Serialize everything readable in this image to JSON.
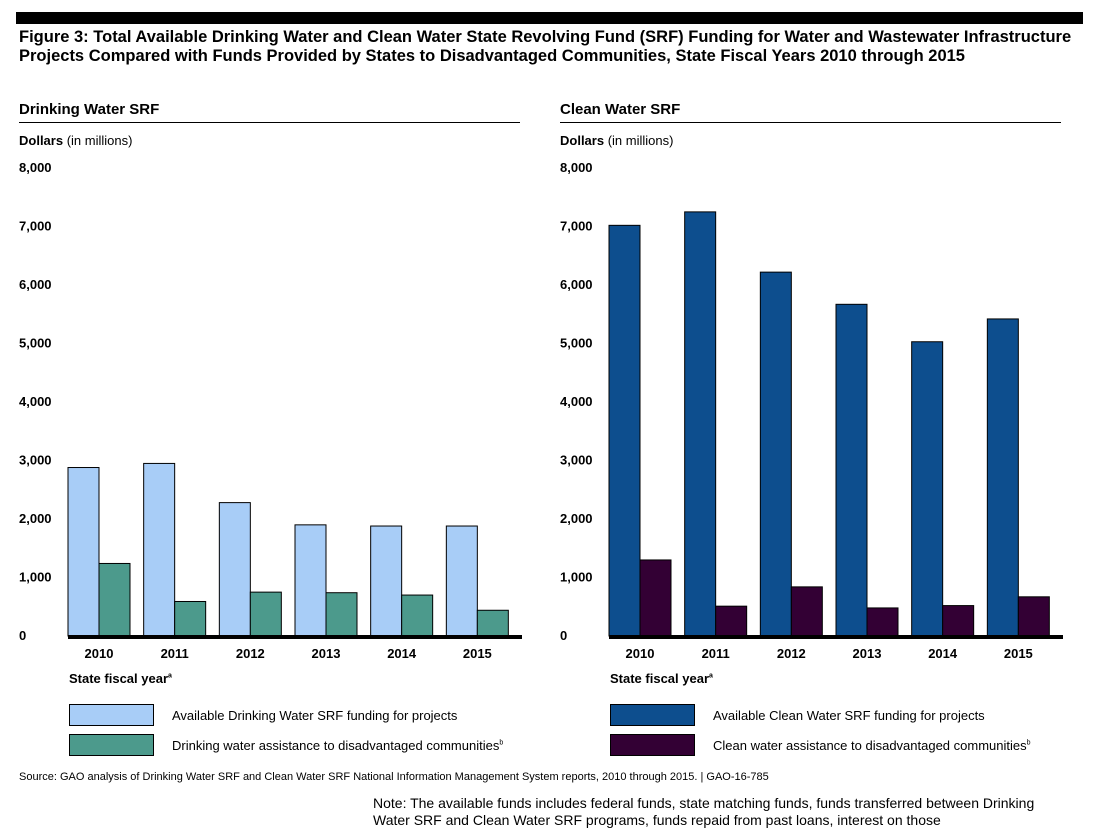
{
  "figure": {
    "title": "Figure 3: Total Available Drinking Water and Clean Water State Revolving Fund (SRF) Funding for Water and Wastewater Infrastructure Projects Compared with Funds Provided by States to Disadvantaged Communities, State Fiscal Years 2010 through 2015",
    "source": "Source: GAO analysis of Drinking Water SRF and Clean Water SRF National Information Management System reports, 2010 through 2015.  |  GAO-16-785",
    "note": "Note: The available funds includes federal funds, state matching funds, funds transferred between Drinking Water SRF and Clean Water SRF programs, funds repaid from past loans, interest on those"
  },
  "panels": {
    "dw": {
      "title": "Drinking Water SRF",
      "unit_bold": "Dollars",
      "unit_rest": " (in millions)",
      "xlabel": "State fiscal year",
      "xlabel_sup": "a",
      "legend": [
        {
          "label": "Available Drinking Water SRF funding for projects",
          "sup": ""
        },
        {
          "label": "Drinking water assistance to disadvantaged communities",
          "sup": "b"
        }
      ]
    },
    "cw": {
      "title": "Clean Water SRF",
      "unit_bold": "Dollars",
      "unit_rest": " (in millions)",
      "xlabel": "State fiscal year",
      "xlabel_sup": "a",
      "legend": [
        {
          "label": "Available Clean Water SRF funding for projects",
          "sup": ""
        },
        {
          "label": "Clean water assistance to disadvantaged communities",
          "sup": "b"
        }
      ]
    }
  },
  "chart_data": [
    {
      "type": "bar",
      "title": "Drinking Water SRF",
      "ylabel": "Dollars (in millions)",
      "xlabel": "State fiscal year",
      "ylim": [
        0,
        8000
      ],
      "yticks": [
        "0",
        "1,000",
        "2,000",
        "3,000",
        "4,000",
        "5,000",
        "6,000",
        "7,000",
        "8,000"
      ],
      "categories": [
        "2010",
        "2011",
        "2012",
        "2013",
        "2014",
        "2015"
      ],
      "series": [
        {
          "name": "Available Drinking Water SRF funding for projects",
          "color": "#a8cdf7",
          "values": [
            2880,
            2950,
            2280,
            1900,
            1880,
            1880
          ]
        },
        {
          "name": "Drinking water assistance to disadvantaged communities",
          "color": "#4c9a8c",
          "values": [
            1240,
            590,
            750,
            740,
            700,
            440
          ]
        }
      ],
      "grid": false,
      "legend_position": "bottom"
    },
    {
      "type": "bar",
      "title": "Clean Water SRF",
      "ylabel": "Dollars (in millions)",
      "xlabel": "State fiscal year",
      "ylim": [
        0,
        8000
      ],
      "yticks": [
        "0",
        "1,000",
        "2,000",
        "3,000",
        "4,000",
        "5,000",
        "6,000",
        "7,000",
        "8,000"
      ],
      "categories": [
        "2010",
        "2011",
        "2012",
        "2013",
        "2014",
        "2015"
      ],
      "series": [
        {
          "name": "Available Clean Water SRF funding for projects",
          "color": "#0d4e8e",
          "values": [
            7020,
            7250,
            6220,
            5670,
            5030,
            5420
          ]
        },
        {
          "name": "Clean water assistance to disadvantaged communities",
          "color": "#330034",
          "values": [
            1300,
            510,
            840,
            480,
            520,
            670
          ]
        }
      ],
      "grid": false,
      "legend_position": "bottom"
    }
  ]
}
